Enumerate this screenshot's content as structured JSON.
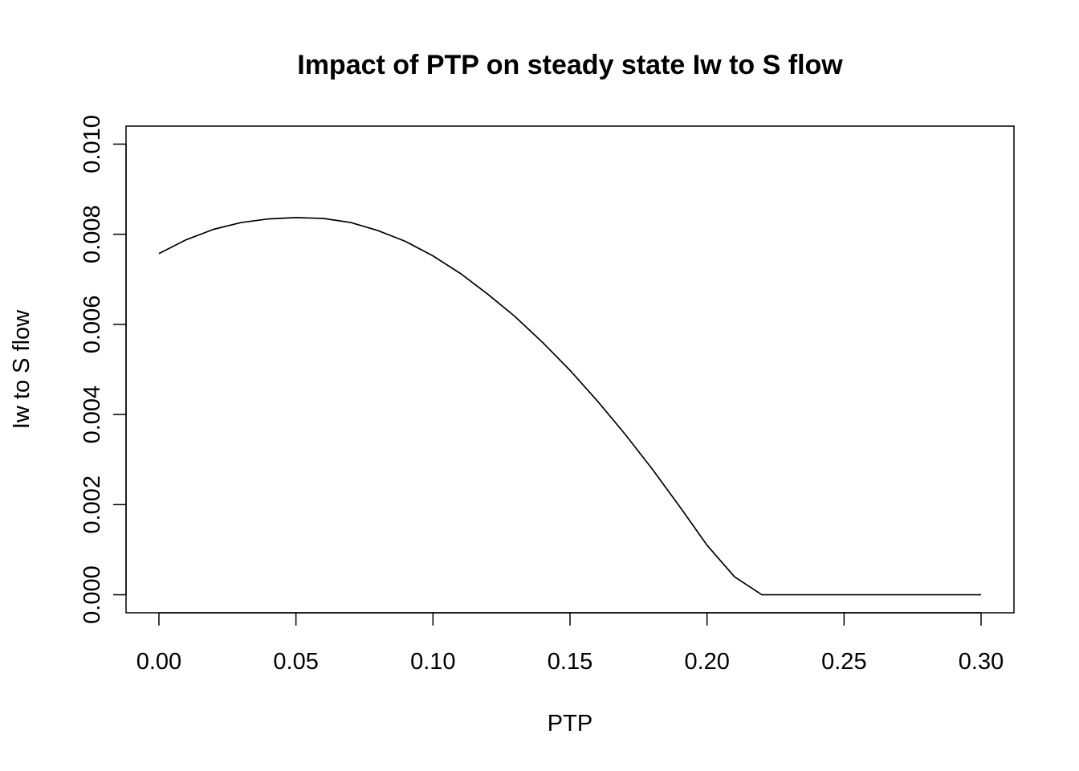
{
  "chart_data": {
    "type": "line",
    "title": "Impact of PTP on steady state Iw to S flow",
    "xlabel": "PTP",
    "ylabel": "Iw to S flow",
    "xlim": [
      -0.012,
      0.312
    ],
    "ylim": [
      -0.0004,
      0.0104
    ],
    "xticks": [
      0.0,
      0.05,
      0.1,
      0.15,
      0.2,
      0.25,
      0.3
    ],
    "xtick_labels": [
      "0.00",
      "0.05",
      "0.10",
      "0.15",
      "0.20",
      "0.25",
      "0.30"
    ],
    "yticks": [
      0.0,
      0.002,
      0.004,
      0.006,
      0.008,
      0.01
    ],
    "ytick_labels": [
      "0.000",
      "0.002",
      "0.004",
      "0.006",
      "0.008",
      "0.010"
    ],
    "grid": false,
    "line_color": "#000000",
    "series": [
      {
        "x": [
          0.0,
          0.01,
          0.02,
          0.03,
          0.04,
          0.05,
          0.06,
          0.07,
          0.08,
          0.09,
          0.1,
          0.11,
          0.12,
          0.13,
          0.14,
          0.15,
          0.16,
          0.17,
          0.18,
          0.19,
          0.2,
          0.21,
          0.22,
          0.23,
          0.24,
          0.25,
          0.26,
          0.27,
          0.28,
          0.29,
          0.3
        ],
        "y": [
          0.00757,
          0.00788,
          0.00811,
          0.00826,
          0.00834,
          0.00837,
          0.00835,
          0.00826,
          0.00808,
          0.00784,
          0.00752,
          0.00713,
          0.00667,
          0.00617,
          0.0056,
          0.00498,
          0.0043,
          0.00357,
          0.00279,
          0.00196,
          0.0011,
          0.0004,
          0.0,
          0.0,
          0.0,
          0.0,
          0.0,
          0.0,
          0.0,
          0.0,
          0.0
        ]
      }
    ]
  }
}
